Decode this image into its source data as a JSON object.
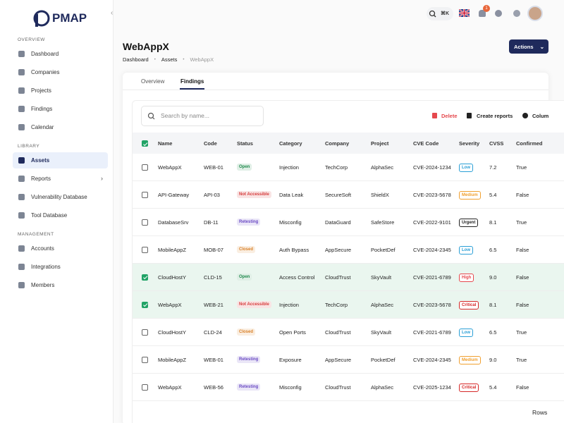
{
  "sidebar": {
    "logo": "PMAP",
    "sections": [
      {
        "title": "OVERVIEW",
        "items": [
          "Dashboard",
          "Companies",
          "Projects",
          "Findings",
          "Calendar"
        ]
      },
      {
        "title": "LIBRARY",
        "items": [
          "Assets",
          "Reports",
          "Vulnerability Database",
          "Tool Database"
        ],
        "active_index": 0,
        "expandable_index": 1
      },
      {
        "title": "MANAGEMENT",
        "items": [
          "Accounts",
          "Integrations",
          "Members"
        ]
      }
    ]
  },
  "topbar": {
    "shortcut": "⌘K",
    "notifications": "1"
  },
  "page": {
    "title": "WebAppX",
    "breadcrumb": [
      "Dashboard",
      "Assets",
      "WebAppX"
    ],
    "actions": "Actions",
    "tabs": [
      "Overview",
      "Findings"
    ],
    "active_tab": 1
  },
  "toolbar": {
    "search_placeholder": "Search by name...",
    "delete": "Delete",
    "create": "Create reports",
    "columns": "Colum"
  },
  "table": {
    "columns": [
      "Name",
      "Code",
      "Status",
      "Category",
      "Company",
      "Project",
      "CVE Code",
      "Severity",
      "CVSS",
      "Confirmed"
    ],
    "header_selected": true,
    "rows": [
      {
        "selected": false,
        "cells": [
          "WebAppX",
          "WEB-01",
          {
            "text": "Open",
            "color": "#1f8a4c"
          },
          "Injection",
          "TechCorp",
          "AlphaSec",
          "CVE-2024-1234",
          {
            "text": "Low",
            "color": "#2a9fd6"
          },
          "7.2",
          "True"
        ]
      },
      {
        "selected": false,
        "cells": [
          "API-Gateway",
          "API-03",
          {
            "text": "Not Accessible",
            "color": "#d63b3b"
          },
          "Data Leak",
          "SecureSoft",
          "ShieldX",
          "CVE-2023-5678",
          {
            "text": "Medium",
            "color": "#f0a030"
          },
          "5.4",
          "False"
        ]
      },
      {
        "selected": false,
        "cells": [
          "DatabaseSrv",
          "DB-11",
          {
            "text": "Retesting",
            "color": "#6b4bc4"
          },
          "Misconfig",
          "DataGuard",
          "SafeStore",
          "CVE-2022-9101",
          {
            "text": "Urgent",
            "color": "#222222"
          },
          "8.1",
          "True"
        ]
      },
      {
        "selected": false,
        "cells": [
          "MobileAppZ",
          "MOB-07",
          {
            "text": "Closed",
            "color": "#d9822b"
          },
          "Auth Bypass",
          "AppSecure",
          "PocketDef",
          "CVE-2024-2345",
          {
            "text": "Low",
            "color": "#2a9fd6"
          },
          "6.5",
          "False"
        ]
      },
      {
        "selected": true,
        "cells": [
          "CloudHostY",
          "CLD-15",
          {
            "text": "Open",
            "color": "#1f8a4c"
          },
          "Access Control",
          "CloudTrust",
          "SkyVault",
          "CVE-2021-6789",
          {
            "text": "High",
            "color": "#e5484d"
          },
          "9.0",
          "False"
        ]
      },
      {
        "selected": true,
        "cells": [
          "WebAppX",
          "WEB-21",
          {
            "text": "Not Accessible",
            "color": "#d63b3b"
          },
          "Injection",
          "TechCorp",
          "AlphaSec",
          "CVE-2023-5678",
          {
            "text": "Critical",
            "color": "#d62828"
          },
          "8.1",
          "False"
        ]
      },
      {
        "selected": false,
        "cells": [
          "CloudHostY",
          "CLD-24",
          {
            "text": "Closed",
            "color": "#d9822b"
          },
          "Open Ports",
          "CloudTrust",
          "SkyVault",
          "CVE-2021-6789",
          {
            "text": "Low",
            "color": "#2a9fd6"
          },
          "6.5",
          "True"
        ]
      },
      {
        "selected": false,
        "cells": [
          "MobileAppZ",
          "WEB-01",
          {
            "text": "Retesting",
            "color": "#6b4bc4"
          },
          "Exposure",
          "AppSecure",
          "PocketDef",
          "CVE-2024-2345",
          {
            "text": "Medium",
            "color": "#f0a030"
          },
          "9.0",
          "True"
        ]
      },
      {
        "selected": false,
        "cells": [
          "WebAppX",
          "WEB-56",
          {
            "text": "Retesting",
            "color": "#6b4bc4"
          },
          "Misconfig",
          "CloudTrust",
          "AlphaSec",
          "CVE-2025-1234",
          {
            "text": "Critical",
            "color": "#d62828"
          },
          "5.4",
          "False"
        ]
      }
    ]
  },
  "footer": {
    "rows_label": "Rows"
  }
}
